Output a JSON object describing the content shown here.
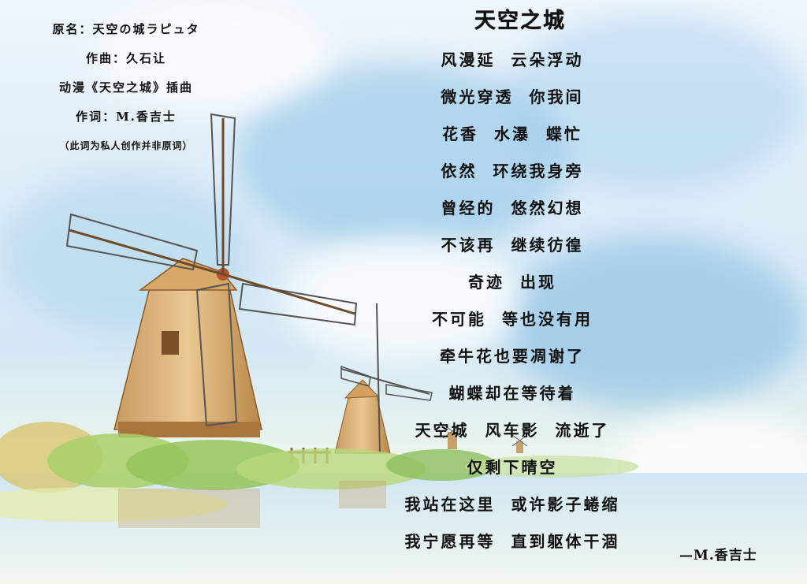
{
  "credits": {
    "original_name": "原名：天空の城ラピュタ",
    "composer": "作曲：久石让",
    "source": "动漫《天空之城》插曲",
    "lyricist": "作词：M.香吉士",
    "note": "（此词为私人创作并非原词）"
  },
  "title": "天空之城",
  "lyrics": [
    "风漫延  云朵浮动",
    "微光穿透  你我间",
    "花香  水瀑  蝶忙",
    "依然  环绕我身旁",
    "曾经的  悠然幻想",
    "不该再  继续彷徨",
    "奇迹  出现",
    "不可能  等也没有用",
    "牵牛花也要凋谢了",
    "蝴蝶却在等待着",
    "天空城  风车影  流逝了",
    "仅剩下晴空",
    "我站在这里  或许影子蜷缩",
    "我宁愿再等  直到躯体干涸"
  ],
  "signature": "—M.香吉士"
}
